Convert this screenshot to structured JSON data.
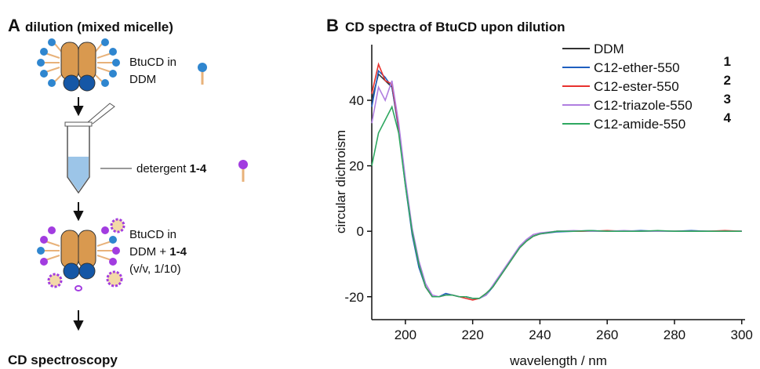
{
  "panel_a": {
    "label": "A",
    "title": "dilution (mixed micelle)",
    "step1": {
      "line1": "BtuCD in",
      "line2": "DDM"
    },
    "detergent": {
      "text": "detergent ",
      "bold": "1-4"
    },
    "step2": {
      "line1": "BtuCD in",
      "line2": "DDM + ",
      "line2_bold": "1-4",
      "line3": "(v/v, 1/10)"
    },
    "final": "CD spectroscopy"
  },
  "chart_data": {
    "type": "line",
    "label": "B",
    "title": "CD spectra of BtuCD upon dilution",
    "x_label": "wavelength / nm",
    "y_label": "circular dichroism",
    "xlim": [
      190,
      301
    ],
    "xticks": [
      200,
      220,
      240,
      260,
      280,
      300
    ],
    "ylim": [
      -27,
      57
    ],
    "yticks": [
      -20,
      0,
      20,
      40
    ],
    "x": [
      190,
      192,
      194,
      196,
      198,
      200,
      202,
      204,
      206,
      208,
      210,
      212,
      214,
      216,
      218,
      220,
      222,
      224,
      226,
      228,
      230,
      232,
      234,
      236,
      238,
      240,
      245,
      250,
      255,
      260,
      265,
      270,
      275,
      280,
      285,
      290,
      295,
      300
    ],
    "series": [
      {
        "name": "DDM",
        "color": "#333333",
        "values": [
          40,
          48,
          46,
          44,
          32,
          15,
          0,
          -10,
          -17,
          -20,
          -20,
          -19.5,
          -19.5,
          -20,
          -20,
          -20.5,
          -20.5,
          -19,
          -17,
          -14,
          -11,
          -8,
          -5,
          -3,
          -1.5,
          -0.8,
          0,
          0,
          0,
          0,
          0,
          0,
          0,
          0,
          0,
          0,
          0,
          0
        ]
      },
      {
        "name": "C12-ether-550",
        "label": "1",
        "color": "#1f5fbf",
        "values": [
          38,
          49,
          47,
          44,
          31,
          14,
          -1,
          -11,
          -17,
          -20,
          -20,
          -19,
          -19.5,
          -20,
          -20,
          -20.5,
          -20.5,
          -19.5,
          -17,
          -14,
          -11,
          -8,
          -5,
          -3,
          -1.5,
          -0.8,
          -0.2,
          0,
          0.2,
          0,
          0,
          0.2,
          0,
          0,
          0.2,
          0,
          0,
          0
        ]
      },
      {
        "name": "C12-ester-550",
        "label": "2",
        "color": "#e8322e",
        "values": [
          42,
          51,
          46,
          45,
          32,
          15,
          0,
          -10,
          -17,
          -20,
          -20,
          -19.5,
          -19.5,
          -20,
          -20.5,
          -21,
          -20.5,
          -19,
          -17,
          -14,
          -11,
          -8,
          -5,
          -3,
          -1.5,
          -0.8,
          0,
          0,
          0,
          0.2,
          0,
          0,
          0,
          0,
          0,
          0,
          0.2,
          0
        ]
      },
      {
        "name": "C12-triazole-550",
        "label": "3",
        "color": "#b07ee0",
        "values": [
          33,
          44,
          40,
          46,
          33,
          16,
          1,
          -9,
          -16,
          -19.5,
          -20,
          -19.5,
          -19.5,
          -20,
          -20,
          -20.5,
          -20.5,
          -19.5,
          -16.5,
          -13.5,
          -10.5,
          -7.5,
          -4.5,
          -2.5,
          -1,
          -0.5,
          0,
          0.2,
          0,
          0,
          0.2,
          0,
          0,
          0,
          0,
          0,
          0,
          0
        ]
      },
      {
        "name": "C12-amide-550",
        "label": "4",
        "color": "#2ea860",
        "values": [
          20,
          30,
          34,
          38,
          30,
          14,
          0,
          -10,
          -17,
          -20,
          -20,
          -19.5,
          -19.5,
          -20,
          -20,
          -20.5,
          -20.5,
          -19,
          -17,
          -14,
          -11,
          -8,
          -5,
          -3,
          -1.5,
          -0.8,
          0,
          0,
          0.2,
          0,
          0,
          0,
          0.2,
          0,
          0,
          0,
          0,
          0
        ]
      }
    ]
  }
}
